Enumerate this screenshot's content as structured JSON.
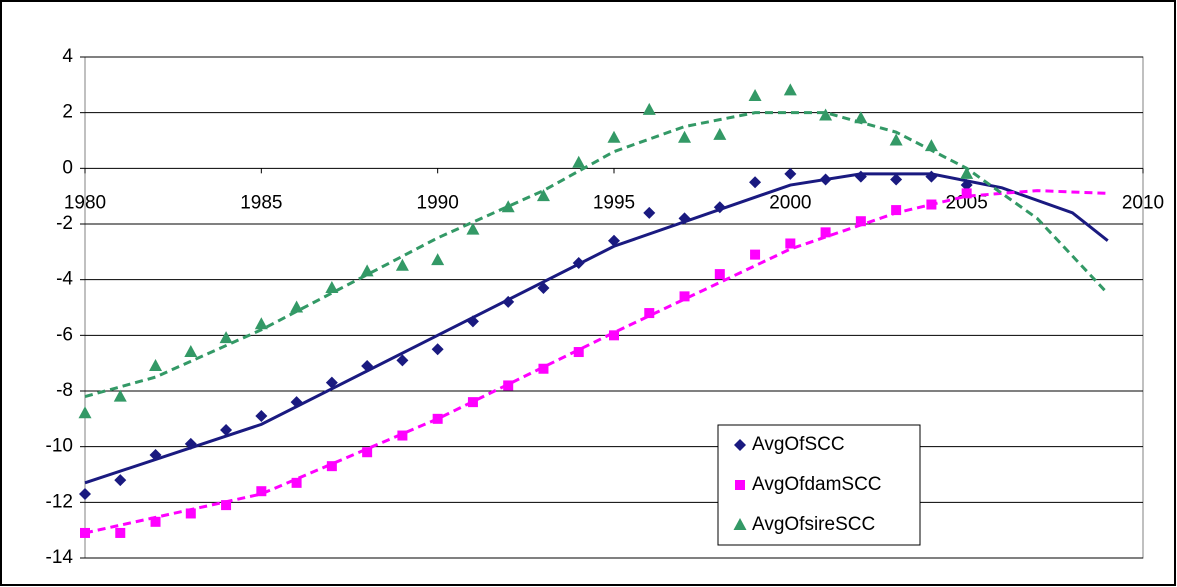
{
  "chart_data": {
    "type": "scatter",
    "xlim": [
      1980,
      2010
    ],
    "xticks": [
      1980,
      1985,
      1990,
      1995,
      2000,
      2005,
      2010
    ],
    "ylim": [
      -14,
      4
    ],
    "yticks": [
      -14,
      -12,
      -10,
      -8,
      -6,
      -4,
      -2,
      0,
      2,
      4
    ],
    "grid": true,
    "legend": "lower-right",
    "x": [
      1980,
      1981,
      1982,
      1983,
      1984,
      1985,
      1986,
      1987,
      1988,
      1989,
      1990,
      1991,
      1992,
      1993,
      1994,
      1995,
      1996,
      1997,
      1998,
      1999,
      2000,
      2001,
      2002,
      2003,
      2004,
      2005
    ],
    "series": [
      {
        "name": "AvgOfSCC",
        "color": "#1a1a80",
        "marker": "diamond",
        "values": [
          -11.7,
          -11.2,
          -10.3,
          -9.9,
          -9.4,
          -8.9,
          -8.4,
          -7.7,
          -7.1,
          -6.9,
          -6.5,
          -5.5,
          -4.8,
          -4.3,
          -3.4,
          -2.6,
          -1.6,
          -1.8,
          -1.4,
          -0.5,
          -0.2,
          -0.4,
          -0.3,
          -0.4,
          -0.3,
          -0.6
        ],
        "trendline": {
          "dash": false,
          "x": [
            1980,
            1985,
            1990,
            1995,
            2000,
            2002,
            2004,
            2006,
            2008,
            2009
          ],
          "values": [
            -11.3,
            -9.2,
            -6.0,
            -2.8,
            -0.6,
            -0.2,
            -0.2,
            -0.7,
            -1.6,
            -2.6
          ]
        }
      },
      {
        "name": "AvgOfdamSCC",
        "color": "#ff00ff",
        "marker": "square",
        "values": [
          -13.1,
          -13.1,
          -12.7,
          -12.4,
          -12.1,
          -11.6,
          -11.3,
          -10.7,
          -10.2,
          -9.6,
          -9.0,
          -8.4,
          -7.8,
          -7.2,
          -6.6,
          -6.0,
          -5.2,
          -4.6,
          -3.8,
          -3.1,
          -2.7,
          -2.3,
          -1.9,
          -1.5,
          -1.3,
          -0.9
        ],
        "trendline": {
          "dash": true,
          "x": [
            1980,
            1985,
            1990,
            1995,
            2000,
            2003,
            2005,
            2007,
            2009
          ],
          "values": [
            -13.1,
            -11.7,
            -9.0,
            -5.9,
            -2.9,
            -1.6,
            -1.0,
            -0.8,
            -0.9
          ]
        }
      },
      {
        "name": "AvgOfsireSCC",
        "color": "#339966",
        "marker": "triangle",
        "values": [
          -8.8,
          -8.2,
          -7.1,
          -6.6,
          -6.1,
          -5.6,
          -5.0,
          -4.3,
          -3.7,
          -3.5,
          -3.3,
          -2.2,
          -1.4,
          -1.0,
          0.2,
          1.1,
          2.1,
          1.1,
          1.2,
          2.6,
          2.8,
          1.9,
          1.8,
          1.0,
          0.8,
          -0.2
        ],
        "trendline": {
          "dash": true,
          "x": [
            1980,
            1982,
            1985,
            1990,
            1993,
            1995,
            1997,
            1999,
            2001,
            2003,
            2005,
            2007,
            2009
          ],
          "values": [
            -8.2,
            -7.5,
            -5.8,
            -2.5,
            -0.8,
            0.6,
            1.5,
            2.0,
            2.0,
            1.3,
            0.0,
            -1.8,
            -4.5
          ]
        }
      }
    ]
  }
}
